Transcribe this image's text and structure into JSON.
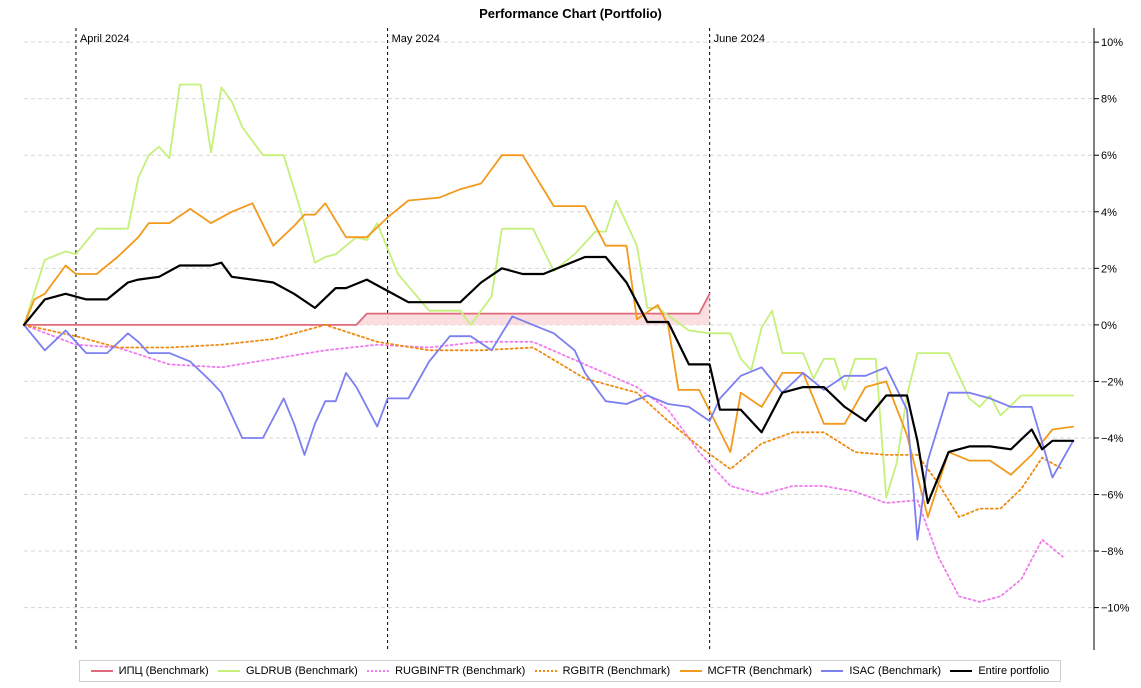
{
  "chart_data": {
    "type": "line",
    "title": "Performance Chart (Portfolio)",
    "xlabel": "",
    "ylabel": "",
    "y_axis_side": "right",
    "ylim": [
      -11.5,
      10.5
    ],
    "y_ticks": [
      10,
      8,
      6,
      4,
      2,
      0,
      -2,
      -4,
      -6,
      -8,
      -10
    ],
    "y_tick_labels": [
      "10%",
      "8%",
      "6%",
      "4%",
      "2%",
      "0%",
      "−2%",
      "−4%",
      "−6%",
      "−8%",
      "−10%"
    ],
    "grid": true,
    "legend_position": "bottom",
    "x_domain": [
      "2024-03-27",
      "2024-07-08"
    ],
    "x_month_markers": [
      {
        "date": "2024-04-01",
        "label": "April 2024"
      },
      {
        "date": "2024-05-01",
        "label": "May 2024"
      },
      {
        "date": "2024-06-01",
        "label": "June 2024"
      }
    ],
    "series": [
      {
        "name": "ИПЦ (Benchmark)",
        "color": "#e06a7a",
        "dash": "solid",
        "fill": "#fadadd",
        "x": [
          "2024-03-27",
          "2024-04-05",
          "2024-04-15",
          "2024-04-25",
          "2024-04-28",
          "2024-04-29",
          "2024-05-10",
          "2024-05-20",
          "2024-05-31",
          "2024-06-01"
        ],
        "y": [
          0,
          0,
          0,
          0,
          0,
          0.4,
          0.4,
          0.4,
          0.4,
          1.1
        ]
      },
      {
        "name": "GLDRUB (Benchmark)",
        "color": "#c5f07a",
        "dash": "solid",
        "x": [
          "2024-03-27",
          "2024-03-29",
          "2024-03-31",
          "2024-04-01",
          "2024-04-03",
          "2024-04-06",
          "2024-04-07",
          "2024-04-08",
          "2024-04-09",
          "2024-04-10",
          "2024-04-11",
          "2024-04-12",
          "2024-04-13",
          "2024-04-14",
          "2024-04-15",
          "2024-04-16",
          "2024-04-17",
          "2024-04-19",
          "2024-04-20",
          "2024-04-21",
          "2024-04-23",
          "2024-04-24",
          "2024-04-25",
          "2024-04-26",
          "2024-04-28",
          "2024-04-29",
          "2024-04-30",
          "2024-05-02",
          "2024-05-05",
          "2024-05-06",
          "2024-05-07",
          "2024-05-08",
          "2024-05-09",
          "2024-05-11",
          "2024-05-12",
          "2024-05-14",
          "2024-05-15",
          "2024-05-17",
          "2024-05-19",
          "2024-05-21",
          "2024-05-22",
          "2024-05-23",
          "2024-05-25",
          "2024-05-26",
          "2024-05-27",
          "2024-05-30",
          "2024-06-01",
          "2024-06-03",
          "2024-06-04",
          "2024-06-05",
          "2024-06-06",
          "2024-06-07",
          "2024-06-08",
          "2024-06-10",
          "2024-06-11",
          "2024-06-12",
          "2024-06-13",
          "2024-06-14",
          "2024-06-15",
          "2024-06-17",
          "2024-06-18",
          "2024-06-19",
          "2024-06-20",
          "2024-06-21",
          "2024-06-22",
          "2024-06-24",
          "2024-06-26",
          "2024-06-27",
          "2024-06-28",
          "2024-06-29",
          "2024-07-01",
          "2024-07-02",
          "2024-07-03",
          "2024-07-05",
          "2024-07-06"
        ],
        "y": [
          0,
          2.3,
          2.6,
          2.5,
          3.4,
          3.4,
          5.2,
          6.0,
          6.3,
          5.9,
          8.5,
          8.5,
          8.5,
          6.1,
          8.4,
          7.9,
          7.0,
          6.0,
          6.0,
          6.0,
          3.6,
          2.2,
          2.4,
          2.5,
          3.1,
          3.0,
          3.6,
          1.8,
          0.5,
          0.5,
          0.5,
          0.5,
          0.0,
          1.0,
          3.4,
          3.4,
          3.4,
          1.9,
          2.5,
          3.3,
          3.3,
          4.4,
          2.8,
          0.6,
          0.6,
          -0.2,
          -0.3,
          -0.3,
          -1.2,
          -1.6,
          -0.1,
          0.5,
          -1.0,
          -1.0,
          -1.9,
          -1.2,
          -1.2,
          -2.3,
          -1.2,
          -1.2,
          -6.1,
          -4.9,
          -2.5,
          -1.0,
          -1.0,
          -1.0,
          -2.6,
          -2.9,
          -2.5,
          -3.2,
          -2.5,
          -2.5,
          -2.5,
          -2.5,
          -2.5
        ]
      },
      {
        "name": "RUGBINFTR (Benchmark)",
        "color": "#f07cf0",
        "dash": "dotted",
        "x": [
          "2024-03-27",
          "2024-04-01",
          "2024-04-05",
          "2024-04-10",
          "2024-04-15",
          "2024-04-20",
          "2024-04-25",
          "2024-04-30",
          "2024-05-05",
          "2024-05-10",
          "2024-05-15",
          "2024-05-20",
          "2024-05-25",
          "2024-05-28",
          "2024-05-31",
          "2024-06-03",
          "2024-06-06",
          "2024-06-09",
          "2024-06-12",
          "2024-06-15",
          "2024-06-18",
          "2024-06-21",
          "2024-06-23",
          "2024-06-25",
          "2024-06-27",
          "2024-06-29",
          "2024-07-01",
          "2024-07-03",
          "2024-07-05"
        ],
        "y": [
          0,
          -0.7,
          -0.8,
          -1.4,
          -1.5,
          -1.2,
          -0.9,
          -0.7,
          -0.8,
          -0.6,
          -0.6,
          -1.4,
          -2.2,
          -3.0,
          -4.5,
          -5.7,
          -6.0,
          -5.7,
          -5.7,
          -5.9,
          -6.3,
          -6.2,
          -8.2,
          -9.6,
          -9.8,
          -9.6,
          -9.0,
          -7.6,
          -8.2
        ]
      },
      {
        "name": "RGBITR (Benchmark)",
        "color": "#f08a10",
        "dash": "dotted",
        "x": [
          "2024-03-27",
          "2024-04-01",
          "2024-04-05",
          "2024-04-10",
          "2024-04-15",
          "2024-04-20",
          "2024-04-25",
          "2024-04-30",
          "2024-05-05",
          "2024-05-10",
          "2024-05-15",
          "2024-05-20",
          "2024-05-25",
          "2024-05-28",
          "2024-05-31",
          "2024-06-03",
          "2024-06-06",
          "2024-06-09",
          "2024-06-12",
          "2024-06-15",
          "2024-06-18",
          "2024-06-21",
          "2024-06-23",
          "2024-06-25",
          "2024-06-27",
          "2024-06-29",
          "2024-07-01",
          "2024-07-03",
          "2024-07-05"
        ],
        "y": [
          0,
          -0.4,
          -0.8,
          -0.8,
          -0.7,
          -0.5,
          0.0,
          -0.6,
          -0.9,
          -0.9,
          -0.8,
          -1.9,
          -2.4,
          -3.4,
          -4.3,
          -5.1,
          -4.2,
          -3.8,
          -3.8,
          -4.5,
          -4.6,
          -4.6,
          -5.6,
          -6.8,
          -6.5,
          -6.5,
          -5.8,
          -4.7,
          -5.1
        ]
      },
      {
        "name": "MCFTR (Benchmark)",
        "color": "#f39a1c",
        "dash": "solid",
        "x": [
          "2024-03-27",
          "2024-03-28",
          "2024-03-29",
          "2024-03-31",
          "2024-04-01",
          "2024-04-03",
          "2024-04-05",
          "2024-04-07",
          "2024-04-08",
          "2024-04-10",
          "2024-04-12",
          "2024-04-14",
          "2024-04-16",
          "2024-04-18",
          "2024-04-20",
          "2024-04-22",
          "2024-04-23",
          "2024-04-24",
          "2024-04-25",
          "2024-04-27",
          "2024-04-29",
          "2024-05-01",
          "2024-05-03",
          "2024-05-06",
          "2024-05-08",
          "2024-05-10",
          "2024-05-12",
          "2024-05-14",
          "2024-05-17",
          "2024-05-20",
          "2024-05-22",
          "2024-05-24",
          "2024-05-25",
          "2024-05-27",
          "2024-05-28",
          "2024-05-29",
          "2024-05-31",
          "2024-06-03",
          "2024-06-04",
          "2024-06-06",
          "2024-06-08",
          "2024-06-10",
          "2024-06-12",
          "2024-06-14",
          "2024-06-16",
          "2024-06-18",
          "2024-06-20",
          "2024-06-22",
          "2024-06-24",
          "2024-06-26",
          "2024-06-28",
          "2024-06-30",
          "2024-07-02",
          "2024-07-04",
          "2024-07-06"
        ],
        "y": [
          0,
          0.9,
          1.1,
          2.1,
          1.8,
          1.8,
          2.4,
          3.1,
          3.6,
          3.6,
          4.1,
          3.6,
          4.0,
          4.3,
          2.8,
          3.5,
          3.9,
          3.9,
          4.3,
          3.1,
          3.1,
          3.8,
          4.4,
          4.5,
          4.8,
          5.0,
          6.0,
          6.0,
          4.2,
          4.2,
          2.8,
          2.8,
          0.2,
          0.7,
          0.0,
          -2.3,
          -2.3,
          -4.5,
          -2.4,
          -2.9,
          -1.7,
          -1.7,
          -3.5,
          -3.5,
          -2.2,
          -2.0,
          -3.9,
          -6.8,
          -4.5,
          -4.8,
          -4.8,
          -5.3,
          -4.6,
          -3.7,
          -3.6
        ]
      },
      {
        "name": "ISAC (Benchmark)",
        "color": "#7b7ff0",
        "dash": "solid",
        "x": [
          "2024-03-27",
          "2024-03-29",
          "2024-03-31",
          "2024-04-02",
          "2024-04-04",
          "2024-04-06",
          "2024-04-07",
          "2024-04-08",
          "2024-04-10",
          "2024-04-12",
          "2024-04-14",
          "2024-04-15",
          "2024-04-17",
          "2024-04-18",
          "2024-04-19",
          "2024-04-21",
          "2024-04-22",
          "2024-04-23",
          "2024-04-24",
          "2024-04-25",
          "2024-04-26",
          "2024-04-27",
          "2024-04-28",
          "2024-04-30",
          "2024-05-01",
          "2024-05-02",
          "2024-05-03",
          "2024-05-05",
          "2024-05-07",
          "2024-05-09",
          "2024-05-11",
          "2024-05-13",
          "2024-05-15",
          "2024-05-17",
          "2024-05-19",
          "2024-05-20",
          "2024-05-22",
          "2024-05-24",
          "2024-05-26",
          "2024-05-28",
          "2024-05-30",
          "2024-06-01",
          "2024-06-02",
          "2024-06-04",
          "2024-06-06",
          "2024-06-08",
          "2024-06-10",
          "2024-06-12",
          "2024-06-14",
          "2024-06-16",
          "2024-06-18",
          "2024-06-20",
          "2024-06-21",
          "2024-06-22",
          "2024-06-24",
          "2024-06-26",
          "2024-06-28",
          "2024-06-30",
          "2024-07-02",
          "2024-07-04",
          "2024-07-06"
        ],
        "y": [
          0,
          -0.9,
          -0.2,
          -1.0,
          -1.0,
          -0.3,
          -0.6,
          -1.0,
          -1.0,
          -1.3,
          -2.0,
          -2.4,
          -4.0,
          -4.0,
          -4.0,
          -2.6,
          -3.5,
          -4.6,
          -3.5,
          -2.7,
          -2.7,
          -1.7,
          -2.2,
          -3.6,
          -2.6,
          -2.6,
          -2.6,
          -1.3,
          -0.4,
          -0.4,
          -0.9,
          0.3,
          0.0,
          -0.3,
          -0.9,
          -1.7,
          -2.7,
          -2.8,
          -2.5,
          -2.8,
          -2.9,
          -3.4,
          -2.6,
          -1.8,
          -1.5,
          -2.4,
          -1.7,
          -2.3,
          -1.8,
          -1.8,
          -1.5,
          -3.0,
          -7.6,
          -4.8,
          -2.4,
          -2.4,
          -2.6,
          -2.9,
          -2.9,
          -5.4,
          -4.1
        ]
      },
      {
        "name": "Entire portfolio",
        "color": "#000000",
        "dash": "solid",
        "x": [
          "2024-03-27",
          "2024-03-29",
          "2024-03-31",
          "2024-04-02",
          "2024-04-04",
          "2024-04-06",
          "2024-04-07",
          "2024-04-09",
          "2024-04-11",
          "2024-04-12",
          "2024-04-14",
          "2024-04-15",
          "2024-04-16",
          "2024-04-18",
          "2024-04-20",
          "2024-04-22",
          "2024-04-24",
          "2024-04-26",
          "2024-04-27",
          "2024-04-29",
          "2024-05-01",
          "2024-05-03",
          "2024-05-05",
          "2024-05-08",
          "2024-05-10",
          "2024-05-12",
          "2024-05-14",
          "2024-05-16",
          "2024-05-18",
          "2024-05-20",
          "2024-05-22",
          "2024-05-24",
          "2024-05-26",
          "2024-05-28",
          "2024-05-30",
          "2024-06-01",
          "2024-06-02",
          "2024-06-04",
          "2024-06-06",
          "2024-06-08",
          "2024-06-10",
          "2024-06-12",
          "2024-06-14",
          "2024-06-16",
          "2024-06-18",
          "2024-06-20",
          "2024-06-21",
          "2024-06-22",
          "2024-06-24",
          "2024-06-26",
          "2024-06-28",
          "2024-06-30",
          "2024-07-02",
          "2024-07-03",
          "2024-07-04",
          "2024-07-06"
        ],
        "y": [
          0,
          0.9,
          1.1,
          0.9,
          0.9,
          1.5,
          1.6,
          1.7,
          2.1,
          2.1,
          2.1,
          2.2,
          1.7,
          1.6,
          1.5,
          1.1,
          0.6,
          1.3,
          1.3,
          1.6,
          1.2,
          0.8,
          0.8,
          0.8,
          1.5,
          2.0,
          1.8,
          1.8,
          2.1,
          2.4,
          2.4,
          1.5,
          0.1,
          0.1,
          -1.4,
          -1.4,
          -3.0,
          -3.0,
          -3.8,
          -2.4,
          -2.2,
          -2.2,
          -2.9,
          -3.4,
          -2.5,
          -2.5,
          -4.1,
          -6.3,
          -4.5,
          -4.3,
          -4.3,
          -4.4,
          -3.7,
          -4.4,
          -4.1,
          -4.1
        ]
      }
    ]
  }
}
